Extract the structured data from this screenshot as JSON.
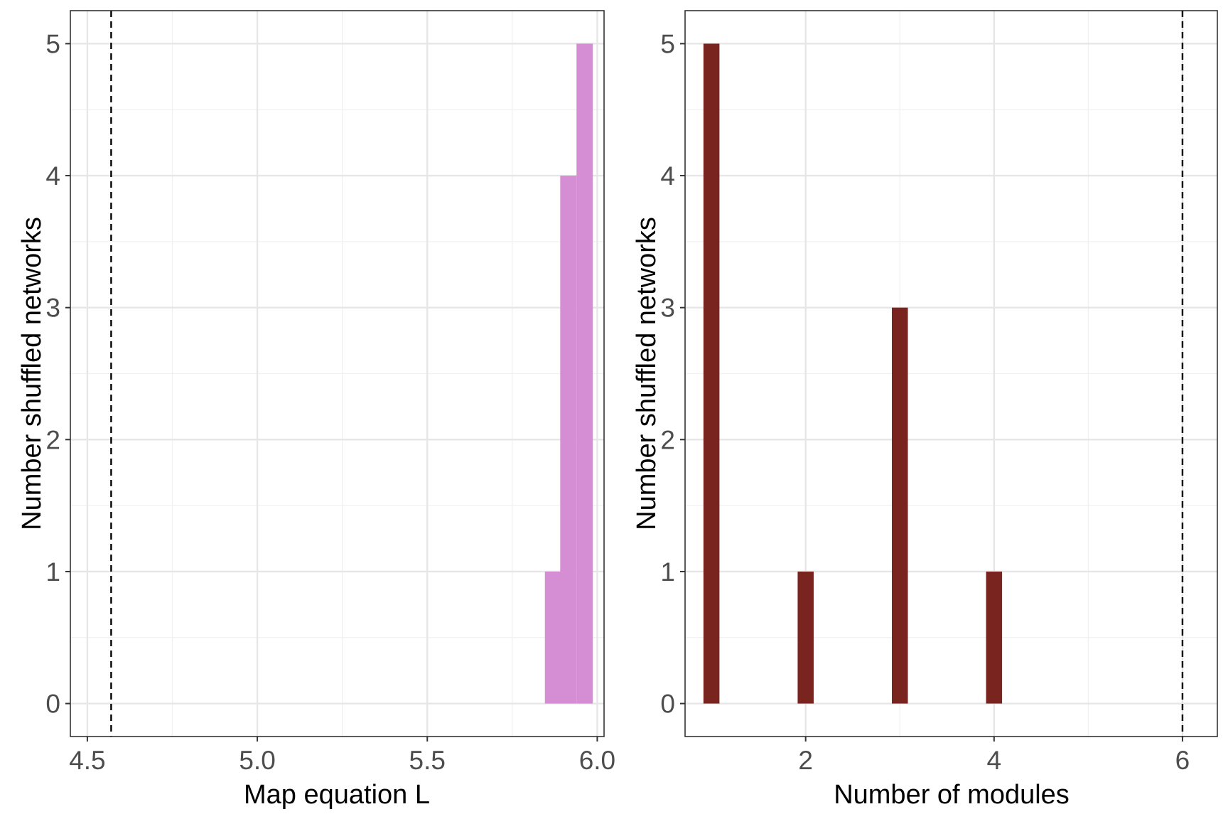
{
  "chart_data": [
    {
      "type": "bar",
      "xlabel": "Map equation L",
      "ylabel": "Number shuffled networks",
      "xlim": [
        4.45,
        6.02
      ],
      "ylim": [
        -0.25,
        5.25
      ],
      "x_ticks": [
        "4.5",
        "5.0",
        "5.5",
        "6.0"
      ],
      "y_ticks": [
        "0",
        "1",
        "2",
        "3",
        "4",
        "5"
      ],
      "bin_width": 0.048,
      "bins": [
        {
          "x": 5.87,
          "count": 1
        },
        {
          "x": 5.915,
          "count": 4
        },
        {
          "x": 5.963,
          "count": 5
        }
      ],
      "reference_line": 4.57,
      "bar_color": "#d58ed3",
      "grid": true
    },
    {
      "type": "bar",
      "xlabel": "Number of modules",
      "ylabel": "Number shuffled networks",
      "xlim": [
        0.72,
        6.37
      ],
      "ylim": [
        -0.25,
        5.25
      ],
      "x_ticks": [
        "2",
        "4",
        "6"
      ],
      "y_ticks": [
        "0",
        "1",
        "2",
        "3",
        "4",
        "5"
      ],
      "bin_width": 0.17,
      "bins": [
        {
          "x": 1,
          "count": 5
        },
        {
          "x": 2,
          "count": 1
        },
        {
          "x": 3,
          "count": 3
        },
        {
          "x": 4,
          "count": 1
        }
      ],
      "reference_line": 6,
      "bar_color": "#7a241f",
      "grid": true
    }
  ]
}
